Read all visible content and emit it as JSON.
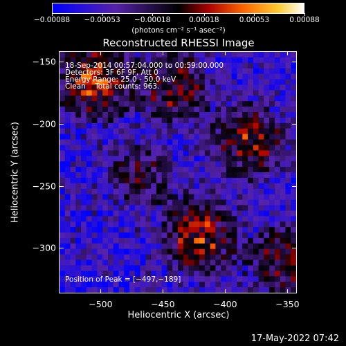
{
  "chart_data": {
    "type": "heatmap",
    "title": "Reconstructed RHESSI Image",
    "xlabel": "Heliocentric X (arcsec)",
    "ylabel": "Heliocentric Y (arcsec)",
    "xlim": [
      -533,
      -343
    ],
    "ylim": [
      -336,
      -142
    ],
    "x_ticks": [
      "−500",
      "−450",
      "−400",
      "−350"
    ],
    "x_tick_values": [
      -500,
      -450,
      -400,
      -350
    ],
    "y_ticks": [
      "−150",
      "−200",
      "−250",
      "−300"
    ],
    "y_tick_values": [
      -150,
      -200,
      -250,
      -300
    ],
    "colorbar": {
      "ticks": [
        "−0.00088",
        "−0.00053",
        "−0.00018",
        "0.00018",
        "0.00053",
        "0.00088"
      ],
      "tick_values": [
        -0.00088,
        -0.00053,
        -0.00018,
        0.00018,
        0.00053,
        0.00088
      ],
      "range": [
        -0.00088,
        0.00088
      ],
      "units_label": "(photons cm⁻² s⁻¹ asec⁻²)",
      "colormap": [
        "#0000ff",
        "#5522aa",
        "#000000",
        "#aa0000",
        "#ff6600",
        "#ffcc33",
        "#ffffff"
      ]
    },
    "annotations": [
      "18-Sep-2014 00:57:04.000 to 00:59:00.000",
      "Detectors: 3F 6F 9F, Att 0",
      "Energy Range: 25.0 - 50.0 keV",
      "Clean    Total counts: 963."
    ],
    "peak_text": "Position of Peak = [−497,−189]",
    "peak_position": [
      -497,
      -189
    ],
    "bright_regions": [
      {
        "x": -505,
        "y": -165,
        "relative_intensity": 1.0
      },
      {
        "x": -420,
        "y": -290,
        "relative_intensity": 0.9
      },
      {
        "x": -380,
        "y": -215,
        "relative_intensity": 0.8
      },
      {
        "x": -440,
        "y": -170,
        "relative_intensity": 0.7
      },
      {
        "x": -350,
        "y": -310,
        "relative_intensity": 0.7
      },
      {
        "x": -470,
        "y": -240,
        "relative_intensity": 0.5
      }
    ],
    "grid": false
  },
  "footer": {
    "timestamp": "17-May-2022 07:42"
  }
}
